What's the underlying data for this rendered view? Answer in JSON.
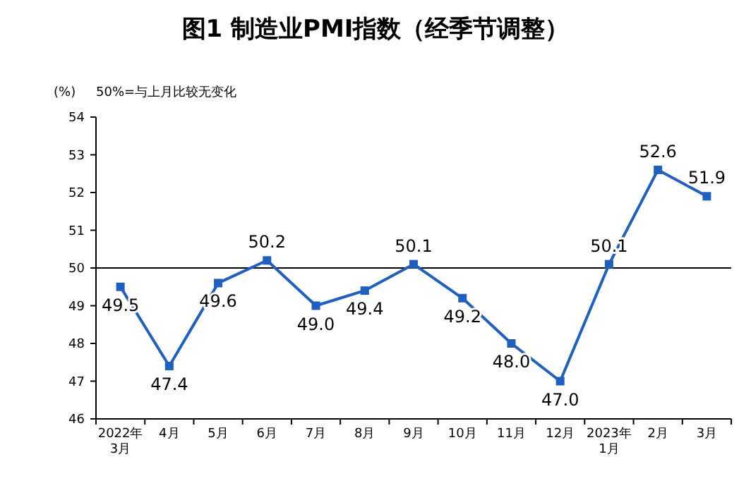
{
  "chart_data": {
    "type": "line",
    "title": "图1 制造业PMI指数（经季节调整）",
    "ylabel": "(%)",
    "annotations": [
      "50%=与上月比较无变化"
    ],
    "categories": [
      "2022年3月",
      "4月",
      "5月",
      "6月",
      "7月",
      "8月",
      "9月",
      "10月",
      "11月",
      "12月",
      "2023年1月",
      "2月",
      "3月"
    ],
    "series": [
      {
        "color": "#1f5fbf",
        "values": [
          49.5,
          47.4,
          49.6,
          50.2,
          49.0,
          49.4,
          50.1,
          49.2,
          48.0,
          47.0,
          50.1,
          52.6,
          51.9
        ],
        "value_labels": [
          "49.5",
          "47.4",
          "49.6",
          "50.2",
          "49.0",
          "49.4",
          "50.1",
          "49.2",
          "48.0",
          "47.0",
          "50.1",
          "52.6",
          "51.9"
        ]
      }
    ],
    "ylim": [
      46,
      54
    ],
    "yticks": [
      46,
      47,
      48,
      49,
      50,
      51,
      52,
      53,
      54
    ],
    "ref_lines": [
      {
        "axis": "y",
        "value": 50,
        "color": "#000000"
      }
    ],
    "marker": "square",
    "grid": false
  }
}
